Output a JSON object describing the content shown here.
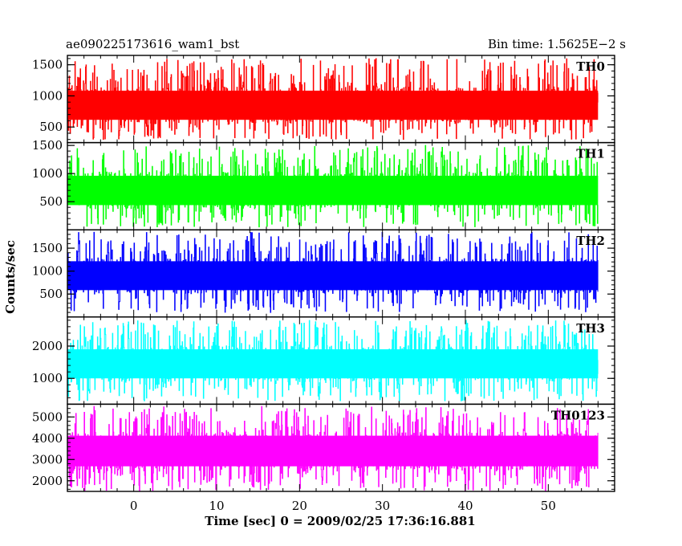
{
  "chart_data": {
    "type": "line",
    "title_left": "ae090225173616_wam1_bst",
    "title_right": "Bin time: 1.5625E−2 s",
    "xlabel": "Time [sec] 0 = 2009/02/25 17:36:16.881",
    "ylabel": "Counts/sec",
    "xlim": [
      -8,
      58
    ],
    "x_ticks": [
      0,
      10,
      20,
      30,
      40,
      50
    ],
    "x_tick_labels": [
      "0",
      "10",
      "20",
      "30",
      "40",
      "50"
    ],
    "data_x_range": [
      -8,
      56
    ],
    "grid": false,
    "panels": [
      {
        "name": "TH0",
        "color": "#ff0000",
        "ylim": [
          250,
          1650
        ],
        "y_ticks": [
          500,
          1000,
          1500
        ],
        "y_tick_labels": [
          "500",
          "1000",
          "1500"
        ],
        "band": [
          300,
          1600
        ],
        "mean": 850
      },
      {
        "name": "TH1",
        "color": "#00ff00",
        "ylim": [
          0,
          1550
        ],
        "y_ticks": [
          500,
          1000,
          1500
        ],
        "y_tick_labels": [
          "500",
          "1000",
          "1500"
        ],
        "band": [
          50,
          1500
        ],
        "mean": 700
      },
      {
        "name": "TH2",
        "color": "#0000ff",
        "ylim": [
          0,
          1900
        ],
        "y_ticks": [
          500,
          1000,
          1500
        ],
        "y_tick_labels": [
          "500",
          "1000",
          "1500"
        ],
        "band": [
          100,
          1850
        ],
        "mean": 900
      },
      {
        "name": "TH3",
        "color": "#00ffff",
        "ylim": [
          200,
          2900
        ],
        "y_ticks": [
          1000,
          2000
        ],
        "y_tick_labels": [
          "1000",
          "2000"
        ],
        "band": [
          300,
          2800
        ],
        "mean": 1450
      },
      {
        "name": "TH0123",
        "color": "#ff00ff",
        "ylim": [
          1500,
          5600
        ],
        "y_ticks": [
          2000,
          3000,
          4000,
          5000
        ],
        "y_tick_labels": [
          "2000",
          "3000",
          "4000",
          "5000"
        ],
        "band": [
          1500,
          5500
        ],
        "mean": 3400
      }
    ]
  }
}
